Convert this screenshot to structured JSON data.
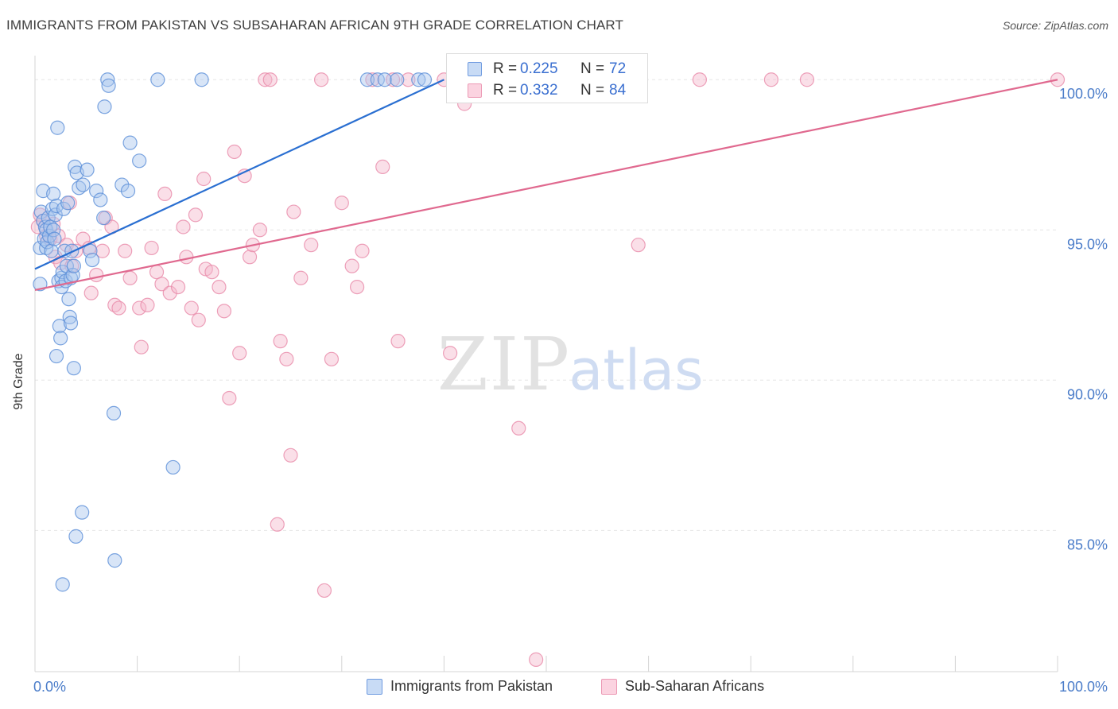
{
  "header": {
    "title": "IMMIGRANTS FROM PAKISTAN VS SUBSAHARAN AFRICAN 9TH GRADE CORRELATION CHART",
    "source": "Source: ZipAtlas.com"
  },
  "watermark": {
    "zip": "ZIP",
    "atlas": "atlas"
  },
  "legend_top": {
    "rows": [
      {
        "r_label": "R =",
        "r_value": "0.225",
        "n_label": "N =",
        "n_value": "72"
      },
      {
        "r_label": "R =",
        "r_value": "0.332",
        "n_label": "N =",
        "n_value": "84"
      }
    ]
  },
  "legend_bottom": {
    "items": [
      "Immigrants from Pakistan",
      "Sub-Saharan Africans"
    ]
  },
  "colors": {
    "blue_fill": "#a9c6ee",
    "blue_stroke": "#5b8fd8",
    "blue_line": "#2a6fd1",
    "pink_fill": "#f5b8cb",
    "pink_stroke": "#e889a9",
    "pink_line": "#e0698f",
    "tick_label": "#4a7cc9",
    "grid": "#e6e6e6"
  },
  "chart_data": {
    "type": "scatter",
    "title": "IMMIGRANTS FROM PAKISTAN VS SUBSAHARAN AFRICAN 9TH GRADE CORRELATION CHART",
    "xlabel": "",
    "ylabel": "9th Grade",
    "xlim": [
      0,
      100
    ],
    "ylim": [
      80.3,
      100.8
    ],
    "x_tick_labels": [
      "0.0%",
      "100.0%"
    ],
    "y_ticks": [
      85,
      90,
      95,
      100
    ],
    "y_tick_labels": [
      "85.0%",
      "90.0%",
      "95.0%",
      "100.0%"
    ],
    "grid": true,
    "legend_position": "top-center",
    "series": [
      {
        "name": "Immigrants from Pakistan",
        "r": 0.225,
        "n": 72,
        "trend": {
          "x": [
            0,
            40
          ],
          "y": [
            93.7,
            100.0
          ]
        },
        "points": [
          [
            0.5,
            93.2
          ],
          [
            0.5,
            94.4
          ],
          [
            0.6,
            95.6
          ],
          [
            0.8,
            96.3
          ],
          [
            0.8,
            95.3
          ],
          [
            0.9,
            94.7
          ],
          [
            1.0,
            95.1
          ],
          [
            1.1,
            94.4
          ],
          [
            1.1,
            95.0
          ],
          [
            1.2,
            94.6
          ],
          [
            1.3,
            95.4
          ],
          [
            1.4,
            94.8
          ],
          [
            1.5,
            95.1
          ],
          [
            1.6,
            94.3
          ],
          [
            1.7,
            95.7
          ],
          [
            1.8,
            96.2
          ],
          [
            1.8,
            95.0
          ],
          [
            1.9,
            94.7
          ],
          [
            2.0,
            95.5
          ],
          [
            2.1,
            95.8
          ],
          [
            2.1,
            90.8
          ],
          [
            2.2,
            98.4
          ],
          [
            2.3,
            93.3
          ],
          [
            2.4,
            91.8
          ],
          [
            2.5,
            91.4
          ],
          [
            2.6,
            93.4
          ],
          [
            2.6,
            93.1
          ],
          [
            2.7,
            93.6
          ],
          [
            2.8,
            95.7
          ],
          [
            2.9,
            94.3
          ],
          [
            2.7,
            83.2
          ],
          [
            3.0,
            93.3
          ],
          [
            3.1,
            93.8
          ],
          [
            3.2,
            95.9
          ],
          [
            3.3,
            92.7
          ],
          [
            3.4,
            92.1
          ],
          [
            3.5,
            93.4
          ],
          [
            3.5,
            91.9
          ],
          [
            3.6,
            94.3
          ],
          [
            3.7,
            93.5
          ],
          [
            3.8,
            93.8
          ],
          [
            3.8,
            90.4
          ],
          [
            3.9,
            97.1
          ],
          [
            4.0,
            84.8
          ],
          [
            4.1,
            96.9
          ],
          [
            4.3,
            96.4
          ],
          [
            4.6,
            85.6
          ],
          [
            4.7,
            96.5
          ],
          [
            5.1,
            97.0
          ],
          [
            5.4,
            94.3
          ],
          [
            5.6,
            94.0
          ],
          [
            6.0,
            96.3
          ],
          [
            6.4,
            96.0
          ],
          [
            6.7,
            95.4
          ],
          [
            6.8,
            99.1
          ],
          [
            7.1,
            100.0
          ],
          [
            7.2,
            99.8
          ],
          [
            7.7,
            88.9
          ],
          [
            7.8,
            84.0
          ],
          [
            8.5,
            96.5
          ],
          [
            9.1,
            96.3
          ],
          [
            9.3,
            97.9
          ],
          [
            10.2,
            97.3
          ],
          [
            12.0,
            100.0
          ],
          [
            13.5,
            87.1
          ],
          [
            16.3,
            100.0
          ],
          [
            32.5,
            100.0
          ],
          [
            33.5,
            100.0
          ],
          [
            34.2,
            100.0
          ],
          [
            35.4,
            100.0
          ],
          [
            37.5,
            100.0
          ],
          [
            38.1,
            100.0
          ]
        ]
      },
      {
        "name": "Sub-Saharan Africans",
        "r": 0.332,
        "n": 84,
        "trend": {
          "x": [
            0,
            100
          ],
          "y": [
            93.0,
            100.0
          ]
        },
        "points": [
          [
            0.3,
            95.1
          ],
          [
            0.5,
            95.5
          ],
          [
            0.8,
            95.3
          ],
          [
            1.1,
            94.8
          ],
          [
            1.5,
            94.7
          ],
          [
            1.8,
            95.2
          ],
          [
            2.0,
            94.1
          ],
          [
            2.3,
            94.8
          ],
          [
            2.5,
            93.9
          ],
          [
            3.1,
            94.5
          ],
          [
            3.4,
            95.9
          ],
          [
            3.6,
            93.8
          ],
          [
            4.0,
            94.3
          ],
          [
            4.7,
            94.7
          ],
          [
            5.3,
            94.4
          ],
          [
            5.5,
            92.9
          ],
          [
            6.0,
            93.5
          ],
          [
            6.6,
            94.3
          ],
          [
            6.9,
            95.4
          ],
          [
            7.5,
            95.1
          ],
          [
            7.8,
            92.5
          ],
          [
            8.2,
            92.4
          ],
          [
            8.8,
            94.3
          ],
          [
            9.3,
            93.4
          ],
          [
            10.2,
            92.4
          ],
          [
            10.4,
            91.1
          ],
          [
            11.0,
            92.5
          ],
          [
            11.4,
            94.4
          ],
          [
            11.9,
            93.6
          ],
          [
            12.4,
            93.2
          ],
          [
            12.7,
            96.2
          ],
          [
            13.2,
            92.9
          ],
          [
            14.0,
            93.1
          ],
          [
            14.5,
            95.1
          ],
          [
            14.8,
            94.1
          ],
          [
            15.3,
            92.4
          ],
          [
            15.7,
            95.5
          ],
          [
            16.0,
            92.0
          ],
          [
            16.5,
            96.7
          ],
          [
            16.7,
            93.7
          ],
          [
            17.3,
            93.6
          ],
          [
            18.0,
            93.1
          ],
          [
            18.5,
            92.3
          ],
          [
            19.0,
            89.4
          ],
          [
            19.5,
            97.6
          ],
          [
            20.0,
            90.9
          ],
          [
            20.5,
            96.8
          ],
          [
            21.0,
            94.1
          ],
          [
            21.3,
            94.5
          ],
          [
            22.0,
            95.0
          ],
          [
            22.5,
            100.0
          ],
          [
            23.0,
            100.0
          ],
          [
            23.7,
            85.2
          ],
          [
            24.0,
            91.3
          ],
          [
            24.6,
            90.7
          ],
          [
            25.0,
            87.5
          ],
          [
            25.3,
            95.6
          ],
          [
            26.0,
            93.4
          ],
          [
            27.0,
            94.5
          ],
          [
            28.0,
            100.0
          ],
          [
            28.3,
            83.0
          ],
          [
            29.0,
            90.7
          ],
          [
            30.0,
            95.9
          ],
          [
            31.0,
            93.8
          ],
          [
            31.5,
            93.1
          ],
          [
            32.0,
            94.3
          ],
          [
            33.0,
            100.0
          ],
          [
            34.0,
            97.1
          ],
          [
            35.0,
            100.0
          ],
          [
            35.5,
            91.3
          ],
          [
            36.5,
            100.0
          ],
          [
            40.0,
            100.0
          ],
          [
            40.6,
            90.9
          ],
          [
            42.0,
            99.2
          ],
          [
            47.0,
            100.0
          ],
          [
            47.3,
            88.4
          ],
          [
            49.0,
            80.7
          ],
          [
            56.0,
            100.0
          ],
          [
            57.5,
            100.0
          ],
          [
            59.0,
            94.5
          ],
          [
            65.0,
            100.0
          ],
          [
            72.0,
            100.0
          ],
          [
            75.5,
            100.0
          ],
          [
            100.0,
            100.0
          ]
        ]
      }
    ]
  }
}
